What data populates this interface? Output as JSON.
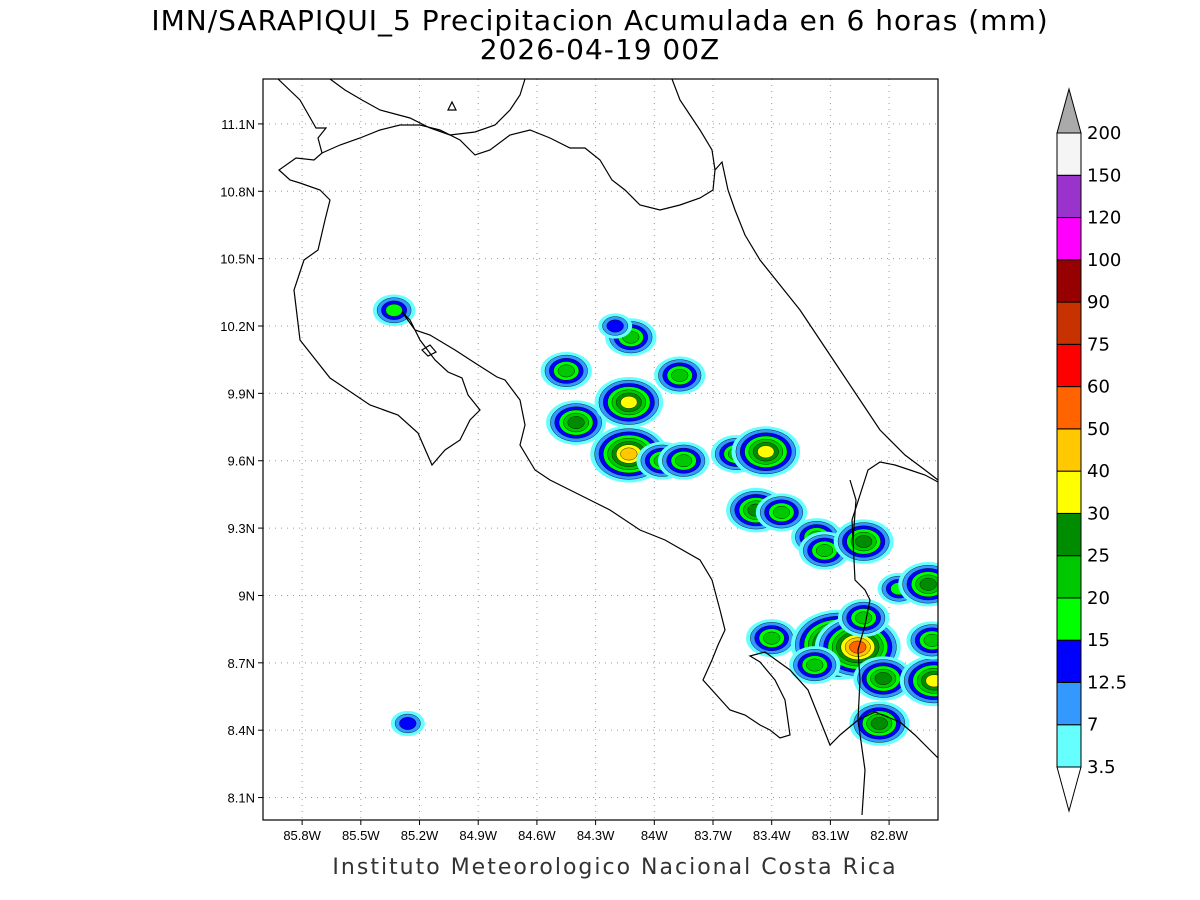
{
  "title": {
    "line1": "IMN/SARAPIQUI_5 Precipitacion Acumulada en 6 horas (mm)",
    "line2": "2026-04-19 00Z"
  },
  "footer": "Instituto Meteorologico Nacional Costa Rica",
  "map": {
    "lon_range": [
      -86.0,
      -82.55
    ],
    "lat_range": [
      8.0,
      11.3
    ],
    "lon_ticks": [
      "85.8W",
      "85.5W",
      "85.2W",
      "84.9W",
      "84.6W",
      "84.3W",
      "84W",
      "83.7W",
      "83.4W",
      "83.1W",
      "82.8W"
    ],
    "lon_tick_values": [
      -85.8,
      -85.5,
      -85.2,
      -84.9,
      -84.6,
      -84.3,
      -84.0,
      -83.7,
      -83.4,
      -83.1,
      -82.8
    ],
    "lat_ticks": [
      "11.1N",
      "10.8N",
      "10.5N",
      "10.2N",
      "9.9N",
      "9.6N",
      "9.3N",
      "9N",
      "8.7N",
      "8.4N",
      "8.1N"
    ],
    "lat_tick_values": [
      11.1,
      10.8,
      10.5,
      10.2,
      9.9,
      9.6,
      9.3,
      9.0,
      8.7,
      8.4,
      8.1
    ],
    "grid": true,
    "precip_cells": [
      {
        "lon": -85.33,
        "lat": 10.27,
        "mm": 15
      },
      {
        "lon": -85.26,
        "lat": 8.43,
        "mm": 12.5
      },
      {
        "lon": -84.45,
        "lat": 10.0,
        "mm": 20
      },
      {
        "lon": -84.4,
        "lat": 9.77,
        "mm": 25
      },
      {
        "lon": -84.12,
        "lat": 10.15,
        "mm": 20
      },
      {
        "lon": -84.2,
        "lat": 10.2,
        "mm": 12.5
      },
      {
        "lon": -83.87,
        "lat": 9.98,
        "mm": 20
      },
      {
        "lon": -84.13,
        "lat": 9.86,
        "mm": 30
      },
      {
        "lon": -84.13,
        "lat": 9.63,
        "mm": 40
      },
      {
        "lon": -83.96,
        "lat": 9.6,
        "mm": 20
      },
      {
        "lon": -83.85,
        "lat": 9.6,
        "mm": 20
      },
      {
        "lon": -83.58,
        "lat": 9.63,
        "mm": 20
      },
      {
        "lon": -83.43,
        "lat": 9.64,
        "mm": 30
      },
      {
        "lon": -83.48,
        "lat": 9.38,
        "mm": 25
      },
      {
        "lon": -83.35,
        "lat": 9.37,
        "mm": 20
      },
      {
        "lon": -83.17,
        "lat": 9.26,
        "mm": 20
      },
      {
        "lon": -83.13,
        "lat": 9.2,
        "mm": 20
      },
      {
        "lon": -82.93,
        "lat": 9.24,
        "mm": 25
      },
      {
        "lon": -82.75,
        "lat": 9.03,
        "mm": 15
      },
      {
        "lon": -82.6,
        "lat": 9.05,
        "mm": 25
      },
      {
        "lon": -83.4,
        "lat": 8.81,
        "mm": 20
      },
      {
        "lon": -83.06,
        "lat": 8.78,
        "mm": 60
      },
      {
        "lon": -82.96,
        "lat": 8.77,
        "mm": 50
      },
      {
        "lon": -82.93,
        "lat": 8.9,
        "mm": 20
      },
      {
        "lon": -83.18,
        "lat": 8.69,
        "mm": 20
      },
      {
        "lon": -82.83,
        "lat": 8.63,
        "mm": 25
      },
      {
        "lon": -82.57,
        "lat": 8.62,
        "mm": 30
      },
      {
        "lon": -82.85,
        "lat": 8.43,
        "mm": 25
      },
      {
        "lon": -82.58,
        "lat": 8.8,
        "mm": 20
      }
    ]
  },
  "colorbar": {
    "levels": [
      "3.5",
      "7",
      "12.5",
      "15",
      "20",
      "25",
      "30",
      "40",
      "50",
      "60",
      "75",
      "90",
      "100",
      "120",
      "150",
      "200"
    ],
    "colors": [
      "#66ffff",
      "#3399ff",
      "#0000ff",
      "#00ff00",
      "#00c800",
      "#008c00",
      "#ffff00",
      "#ffc800",
      "#ff6400",
      "#ff0000",
      "#c83200",
      "#960000",
      "#ff00ff",
      "#9933cc",
      "#f5f5f5",
      "#aaaaaa"
    ]
  }
}
